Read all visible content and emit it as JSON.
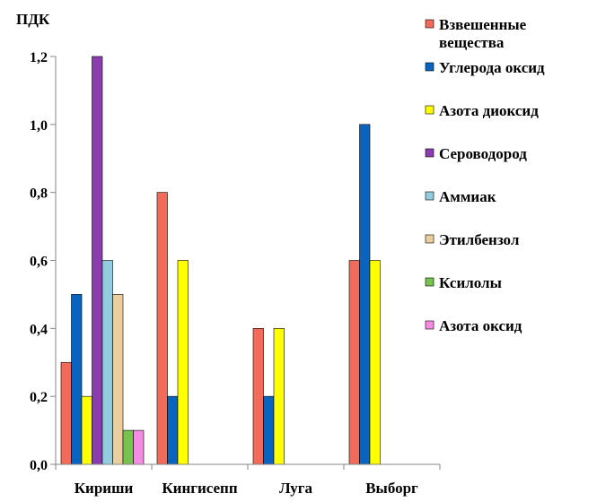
{
  "chart_data": {
    "type": "bar",
    "ylabel": "ПДК",
    "ylim": [
      0,
      1.2
    ],
    "yticks": [
      "0,0",
      "0,2",
      "0,4",
      "0,6",
      "0,8",
      "1,0",
      "1,2"
    ],
    "categories": [
      "Кириши",
      "Кингисепп",
      "Луга",
      "Выборг"
    ],
    "series": [
      {
        "name": "Взвешенные вещества",
        "name_lines": [
          "Взвешенные",
          "вещества"
        ],
        "color": "#F26B5A",
        "values": [
          0.3,
          0.8,
          0.4,
          0.6
        ]
      },
      {
        "name": "Углерода оксид",
        "name_lines": [
          "Углерода оксид"
        ],
        "color": "#0A63BE",
        "values": [
          0.5,
          0.2,
          0.2,
          1.0
        ]
      },
      {
        "name": "Азота диоксид",
        "name_lines": [
          "Азота диоксид"
        ],
        "color": "#FFFF00",
        "values": [
          0.2,
          0.6,
          0.4,
          0.6
        ]
      },
      {
        "name": "Сероводород",
        "name_lines": [
          "Сероводород"
        ],
        "color": "#8B3DB0",
        "values": [
          1.2,
          null,
          null,
          null
        ]
      },
      {
        "name": "Аммиак",
        "name_lines": [
          "Аммиак"
        ],
        "color": "#93CDDD",
        "values": [
          0.6,
          null,
          null,
          null
        ]
      },
      {
        "name": "Этилбензол",
        "name_lines": [
          "Этилбензол"
        ],
        "color": "#EBCE9E",
        "values": [
          0.5,
          null,
          null,
          null
        ]
      },
      {
        "name": "Ксилолы",
        "name_lines": [
          "Ксилолы"
        ],
        "color": "#77C34E",
        "values": [
          0.1,
          null,
          null,
          null
        ]
      },
      {
        "name": "Азота оксид",
        "name_lines": [
          "Азота оксид"
        ],
        "color": "#F78BE4",
        "values": [
          0.1,
          null,
          null,
          null
        ]
      }
    ],
    "legend": "right",
    "grid": false
  }
}
